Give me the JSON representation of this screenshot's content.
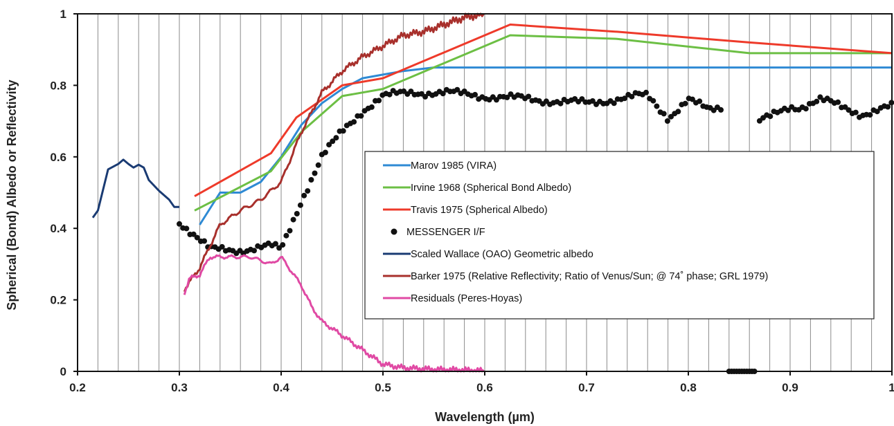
{
  "chart_data": {
    "type": "line",
    "xlabel": "Wavelength (µm)",
    "ylabel": "Spherical (Bond) Albedo or Reflectivity",
    "xlim": [
      0.2,
      1.0
    ],
    "ylim": [
      0,
      1
    ],
    "x_ticks": [
      0.2,
      0.3,
      0.4,
      0.5,
      0.6,
      0.7,
      0.8,
      0.9,
      1.0
    ],
    "x_tick_labels": [
      "0.2",
      "0.3",
      "0.4",
      "0.5",
      "0.6",
      "0.7",
      "0.8",
      "0.9",
      "1"
    ],
    "y_ticks": [
      0,
      0.2,
      0.4,
      0.6,
      0.8,
      1.0
    ],
    "y_tick_labels": [
      "0",
      "0.2",
      "0.4",
      "0.6",
      "0.8",
      "1"
    ],
    "grid": "vertical lines every 0.02 µm",
    "legend_position": "center-right",
    "series": [
      {
        "name": "Marov 1985 (VIRA)",
        "style": "line",
        "color": "#2e8ad4",
        "x": [
          0.32,
          0.34,
          0.36,
          0.38,
          0.4,
          0.42,
          0.44,
          0.46,
          0.48,
          0.5,
          0.52,
          0.55,
          0.6,
          0.7,
          0.8,
          0.9,
          1.0
        ],
        "y": [
          0.41,
          0.5,
          0.5,
          0.53,
          0.6,
          0.69,
          0.75,
          0.79,
          0.82,
          0.83,
          0.84,
          0.85,
          0.85,
          0.85,
          0.85,
          0.85,
          0.85
        ]
      },
      {
        "name": "Irvine 1968 (Spherical Bond Albedo)",
        "style": "line",
        "color": "#6cbf44",
        "x": [
          0.315,
          0.39,
          0.42,
          0.46,
          0.5,
          0.625,
          0.73,
          0.86,
          1.0
        ],
        "y": [
          0.45,
          0.56,
          0.67,
          0.77,
          0.79,
          0.94,
          0.93,
          0.89,
          0.89
        ]
      },
      {
        "name": "Travis 1975 (Spherical Albedo)",
        "style": "line",
        "color": "#ee3a2a",
        "x": [
          0.315,
          0.39,
          0.415,
          0.46,
          0.5,
          0.625,
          0.73,
          0.86,
          1.0
        ],
        "y": [
          0.49,
          0.61,
          0.71,
          0.8,
          0.82,
          0.97,
          0.95,
          0.92,
          0.89
        ]
      },
      {
        "name": "MESSENGER I/F",
        "style": "dots",
        "color": "#111111",
        "segments": [
          {
            "x": [
              0.3,
              0.33,
              0.36,
              0.39,
              0.4,
              0.42,
              0.44,
              0.46,
              0.48,
              0.5,
              0.53,
              0.56,
              0.6,
              0.65,
              0.7,
              0.75,
              0.76,
              0.78,
              0.8,
              0.82,
              0.835
            ],
            "y": [
              0.42,
              0.34,
              0.34,
              0.35,
              0.34,
              0.48,
              0.6,
              0.67,
              0.73,
              0.77,
              0.78,
              0.78,
              0.77,
              0.76,
              0.75,
              0.77,
              0.77,
              0.71,
              0.76,
              0.73,
              0.74
            ]
          },
          {
            "x": [
              0.87,
              0.88,
              0.9,
              0.91,
              0.93,
              0.95,
              0.97,
              1.0
            ],
            "y": [
              0.7,
              0.71,
              0.74,
              0.74,
              0.76,
              0.74,
              0.72,
              0.74
            ]
          },
          {
            "x": [
              0.84,
              0.845,
              0.85,
              0.855,
              0.86,
              0.865
            ],
            "y": [
              0,
              0,
              0,
              0,
              0,
              0
            ]
          }
        ]
      },
      {
        "name": "Scaled Wallace (OAO) Geometric albedo",
        "style": "line",
        "color": "#1a3b73",
        "x": [
          0.215,
          0.22,
          0.23,
          0.24,
          0.245,
          0.25,
          0.255,
          0.26,
          0.265,
          0.27,
          0.28,
          0.29,
          0.295,
          0.3
        ],
        "y": [
          0.43,
          0.45,
          0.565,
          0.58,
          0.592,
          0.58,
          0.57,
          0.578,
          0.57,
          0.535,
          0.505,
          0.48,
          0.46,
          0.46
        ]
      },
      {
        "name": "Barker 1975 (Relative Reflectivity; Ratio of Venus/Sun; @ 74˚ phase; GRL 1979)",
        "style": "line",
        "color": "#a8302c",
        "x": [
          0.305,
          0.32,
          0.34,
          0.36,
          0.38,
          0.4,
          0.42,
          0.44,
          0.46,
          0.48,
          0.5,
          0.52,
          0.54,
          0.56,
          0.58,
          0.6
        ],
        "y": [
          0.23,
          0.29,
          0.41,
          0.45,
          0.48,
          0.53,
          0.67,
          0.78,
          0.84,
          0.88,
          0.91,
          0.94,
          0.95,
          0.97,
          0.99,
          1.0
        ]
      },
      {
        "name": "Residuals (Peres-Hoyas)",
        "style": "line",
        "color": "#e04aa4",
        "x": [
          0.305,
          0.31,
          0.32,
          0.33,
          0.35,
          0.37,
          0.39,
          0.4,
          0.41,
          0.42,
          0.43,
          0.44,
          0.45,
          0.46,
          0.47,
          0.48,
          0.49,
          0.5,
          0.52,
          0.55,
          0.58,
          0.6
        ],
        "y": [
          0.22,
          0.26,
          0.27,
          0.32,
          0.32,
          0.32,
          0.3,
          0.32,
          0.28,
          0.24,
          0.18,
          0.14,
          0.12,
          0.1,
          0.08,
          0.06,
          0.04,
          0.02,
          0.01,
          0.005,
          0.003,
          0.0
        ]
      }
    ]
  }
}
